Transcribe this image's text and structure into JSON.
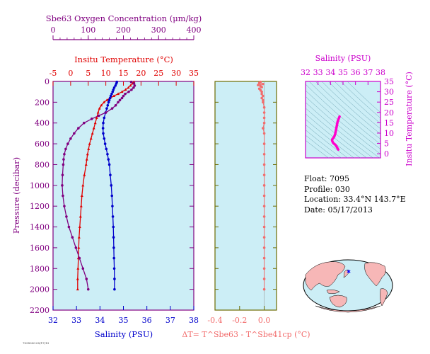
{
  "colors": {
    "background": "#cceef6",
    "oxygen": "#800080",
    "temperature": "#e00000",
    "salinity": "#0000cc",
    "delta_t": "#f26c6c",
    "ts_profile": "#ff00cc",
    "ts_panel_axes": "#cc00cc",
    "land": "#f7b7b7",
    "ocean": "#cceef6"
  },
  "info": {
    "float": "Float:  7095",
    "profile": "Profile:  030",
    "location": "Location:  33.4°N  143.7°E",
    "date": "Date:  05/17/2013"
  },
  "stamp": "7095030-05/17/13",
  "chart_data": [
    {
      "type": "line",
      "title": "",
      "ylabel": "Pressure (decibar)",
      "ylim": [
        2200,
        0
      ],
      "y_ticks": [
        "0",
        "200",
        "400",
        "600",
        "800",
        "1000",
        "1200",
        "1400",
        "1600",
        "1800",
        "2000",
        "2200"
      ],
      "axes": {
        "oxygen": {
          "label": "Sbe63 Oxygen Concentration (μm/kg)",
          "lim": [
            0,
            400
          ],
          "ticks": [
            "0",
            "100",
            "200",
            "300",
            "400"
          ]
        },
        "temperature": {
          "label": "Insitu Temperature (°C)",
          "lim": [
            -5,
            35
          ],
          "ticks": [
            "-5",
            "0",
            "5",
            "10",
            "15",
            "20",
            "25",
            "30",
            "35"
          ]
        },
        "salinity": {
          "label": "Salinity (PSU)",
          "lim": [
            32,
            38
          ],
          "ticks": [
            "32",
            "33",
            "34",
            "35",
            "36",
            "37",
            "38"
          ]
        }
      },
      "series": [
        {
          "name": "Insitu Temperature",
          "axis": "temperature",
          "pressure": [
            5,
            20,
            40,
            60,
            80,
            100,
            120,
            140,
            160,
            180,
            200,
            230,
            260,
            300,
            350,
            400,
            450,
            500,
            550,
            600,
            650,
            700,
            750,
            800,
            900,
            1000,
            1100,
            1200,
            1300,
            1400,
            1500,
            1600,
            1700,
            1800,
            1900,
            2000
          ],
          "values": [
            18.0,
            17.6,
            17.0,
            16.4,
            15.6,
            14.6,
            13.5,
            12.3,
            11.2,
            10.3,
            9.5,
            8.7,
            8.2,
            7.8,
            7.4,
            7.0,
            6.6,
            6.2,
            5.8,
            5.4,
            5.1,
            4.8,
            4.6,
            4.4,
            3.9,
            3.5,
            3.2,
            3.0,
            2.8,
            2.6,
            2.4,
            2.3,
            2.2,
            2.1,
            2.0,
            2.0
          ]
        },
        {
          "name": "Salinity",
          "axis": "salinity",
          "pressure": [
            5,
            20,
            40,
            60,
            80,
            100,
            120,
            140,
            160,
            180,
            200,
            230,
            260,
            300,
            350,
            400,
            450,
            500,
            550,
            600,
            650,
            700,
            750,
            800,
            900,
            1000,
            1100,
            1200,
            1300,
            1400,
            1500,
            1600,
            1700,
            1800,
            1900,
            2000
          ],
          "values": [
            34.72,
            34.7,
            34.66,
            34.61,
            34.57,
            34.54,
            34.5,
            34.46,
            34.43,
            34.4,
            34.37,
            34.33,
            34.29,
            34.24,
            34.18,
            34.14,
            34.13,
            34.14,
            34.18,
            34.22,
            34.27,
            34.32,
            34.36,
            34.4,
            34.44,
            34.48,
            34.51,
            34.53,
            34.55,
            34.57,
            34.58,
            34.59,
            34.6,
            34.61,
            34.62,
            34.62
          ]
        },
        {
          "name": "Sbe63 Oxygen Concentration",
          "axis": "oxygen",
          "pressure": [
            5,
            20,
            40,
            60,
            80,
            100,
            120,
            140,
            160,
            180,
            200,
            230,
            260,
            300,
            330,
            360,
            400,
            450,
            500,
            550,
            600,
            650,
            700,
            750,
            800,
            900,
            1000,
            1100,
            1200,
            1300,
            1400,
            1500,
            1600,
            1700,
            1800,
            1900,
            2000
          ],
          "values": [
            222,
            230,
            232,
            229,
            223,
            215,
            205,
            200,
            196,
            190,
            185,
            178,
            168,
            150,
            130,
            110,
            88,
            72,
            60,
            50,
            42,
            36,
            32,
            30,
            29,
            27,
            26,
            28,
            32,
            38,
            45,
            55,
            65,
            75,
            85,
            95,
            100
          ]
        }
      ]
    },
    {
      "type": "scatter",
      "xlabel": "ΔT= T^Sbe63 - T^Sbe41cp (°C)",
      "xlim": [
        -0.4,
        0.1
      ],
      "x_ticks": [
        "-0.4",
        "-0.2",
        "0.0"
      ],
      "ylim": [
        2200,
        0
      ],
      "pressure": [
        5,
        15,
        25,
        35,
        45,
        55,
        70,
        85,
        100,
        120,
        140,
        160,
        180,
        200,
        250,
        300,
        350,
        400,
        450,
        500,
        600,
        700,
        800,
        900,
        1000,
        1100,
        1200,
        1300,
        1400,
        1500,
        1600,
        1700,
        1800,
        1900,
        2000
      ],
      "values": [
        -0.03,
        -0.04,
        -0.01,
        -0.05,
        -0.03,
        -0.02,
        -0.04,
        -0.03,
        -0.02,
        -0.02,
        -0.01,
        -0.02,
        -0.01,
        -0.01,
        0.0,
        0.0,
        0.0,
        0.0,
        -0.01,
        0.0,
        0.0,
        0.0,
        0.0,
        0.0,
        0.0,
        0.0,
        0.0,
        0.0,
        0.0,
        0.0,
        0.0,
        0.0,
        0.0,
        0.0,
        0.0
      ]
    },
    {
      "type": "line",
      "title": "",
      "xlabel": "Salinity (PSU)",
      "ylabel": "Insitu Temperature (°C)",
      "xlim": [
        32,
        38
      ],
      "ylim": [
        -2,
        35
      ],
      "x_ticks": [
        "32",
        "33",
        "34",
        "35",
        "36",
        "37",
        "38"
      ],
      "y_ticks": [
        "0",
        "5",
        "10",
        "15",
        "20",
        "25",
        "30",
        "35"
      ],
      "series": [
        {
          "name": "T-S",
          "x": [
            34.72,
            34.66,
            34.57,
            34.5,
            34.43,
            34.37,
            34.29,
            34.2,
            34.14,
            34.13,
            34.16,
            34.22,
            34.3,
            34.38,
            34.44,
            34.48,
            34.52,
            34.55,
            34.58,
            34.6,
            34.62
          ],
          "y": [
            18.0,
            17.0,
            15.6,
            13.5,
            11.2,
            9.5,
            8.2,
            7.5,
            7.0,
            6.4,
            5.8,
            5.2,
            4.8,
            4.4,
            3.9,
            3.5,
            3.1,
            2.8,
            2.4,
            2.2,
            2.0
          ]
        }
      ]
    }
  ]
}
